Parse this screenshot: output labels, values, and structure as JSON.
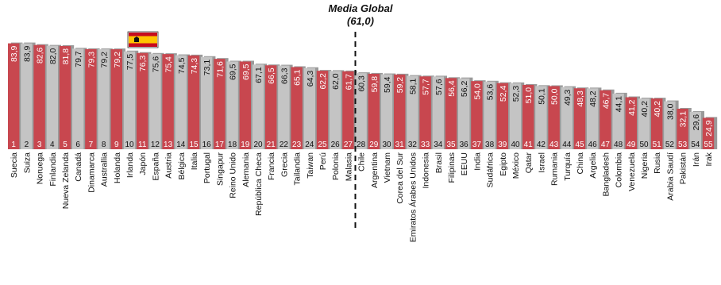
{
  "chart_data": {
    "type": "bar",
    "categories": [
      "Suecia",
      "Suiza",
      "Noruega",
      "Finlandia",
      "Nueva Zelanda",
      "Canadá",
      "Dinamarca",
      "Australlia",
      "Holanda",
      "Irlanda",
      "Japón",
      "España",
      "Austria",
      "Bélgica",
      "Italia",
      "Portugal",
      "Singapur",
      "Reino Unido",
      "Alemania",
      "República Checa",
      "Francia",
      "Grecia",
      "Tailandia",
      "Taiwan",
      "Perú",
      "Polonia",
      "Malasia",
      "Chile",
      "Argentina",
      "Vietnam",
      "Corea del Sur",
      "Emiratos Árabes Unidos",
      "Indonesia",
      "Brasil",
      "Filipinas",
      "EEUU",
      "India",
      "Sudáfrica",
      "Egipto",
      "México",
      "Qatar",
      "Israel",
      "Rumania",
      "Turquía",
      "China",
      "Argelia",
      "Bangladesh",
      "Colombia",
      "Venezuela",
      "Nigeria",
      "Rusia",
      "Arabia Saudí",
      "Pakistán",
      "Irán",
      "Irak"
    ],
    "values": [
      83.9,
      83.9,
      82.6,
      82.0,
      81.8,
      79.7,
      79.3,
      79.2,
      79.2,
      77.5,
      76.3,
      75.6,
      75.4,
      74.5,
      74.3,
      73.1,
      71.6,
      69.5,
      69.5,
      67.1,
      66.5,
      66.3,
      65.1,
      64.3,
      62.2,
      62.0,
      61.7,
      60.3,
      59.8,
      59.4,
      59.2,
      58.1,
      57.7,
      57.6,
      56.4,
      56.2,
      54.0,
      53.6,
      52.4,
      52.3,
      51.0,
      50.1,
      50.0,
      49.3,
      48.3,
      48.2,
      46.7,
      44.1,
      41.2,
      40.2,
      40.2,
      38.0,
      32.1,
      29.6,
      24.9
    ],
    "value_labels": [
      "83,9",
      "83,9",
      "82,6",
      "82,0",
      "81,8",
      "79,7",
      "79,3",
      "79,2",
      "79,2",
      "77,5",
      "76,3",
      "75,6",
      "75,4",
      "74,5",
      "74,3",
      "73,1",
      "71,6",
      "69,5",
      "69,5",
      "67,1",
      "66,5",
      "66,3",
      "65,1",
      "64,3",
      "62,2",
      "62,0",
      "61,7",
      "60,3",
      "59,8",
      "59,4",
      "59,2",
      "58,1",
      "57,7",
      "57,6",
      "56,4",
      "56,2",
      "54,0",
      "53,6",
      "52,4",
      "52,3",
      "51,0",
      "50,1",
      "50,0",
      "49,3",
      "48,3",
      "48,2",
      "46,7",
      "44,1",
      "41,2",
      "40,2",
      "40,2",
      "38,0",
      "32,1",
      "29,6",
      "24,9"
    ],
    "ranks": [
      "1",
      "2",
      "3",
      "4",
      "5",
      "6",
      "7",
      "8",
      "9",
      "10",
      "11",
      "12",
      "13",
      "14",
      "15",
      "16",
      "17",
      "18",
      "19",
      "20",
      "21",
      "22",
      "23",
      "24",
      "25",
      "26",
      "27",
      "28",
      "29",
      "30",
      "31",
      "32",
      "33",
      "34",
      "35",
      "36",
      "37",
      "38",
      "39",
      "40",
      "41",
      "42",
      "43",
      "44",
      "45",
      "46",
      "47",
      "48",
      "49",
      "50",
      "51",
      "52",
      "53",
      "54",
      "55"
    ],
    "highlight": [
      true,
      false,
      true,
      false,
      true,
      false,
      true,
      false,
      true,
      false,
      true,
      false,
      true,
      false,
      true,
      false,
      true,
      false,
      true,
      false,
      true,
      false,
      true,
      false,
      true,
      false,
      true,
      false,
      true,
      false,
      true,
      false,
      true,
      false,
      true,
      false,
      true,
      false,
      true,
      false,
      true,
      false,
      true,
      false,
      true,
      false,
      true,
      false,
      true,
      false,
      true,
      false,
      true,
      false,
      true
    ],
    "ylim": [
      0,
      90
    ],
    "reference_line": {
      "label": "Media Global",
      "value_label": "(61,0)",
      "value": 61.0
    },
    "flag_category": "Japón",
    "colors": {
      "highlight_bar": "#c8474f",
      "plain_bar": "#c4c4c4",
      "highlight_text": "#ffffff",
      "plain_text": "#111111",
      "reference_line": "#111111",
      "flag_red": "#c60b1e",
      "flag_yellow": "#ffc400"
    }
  }
}
